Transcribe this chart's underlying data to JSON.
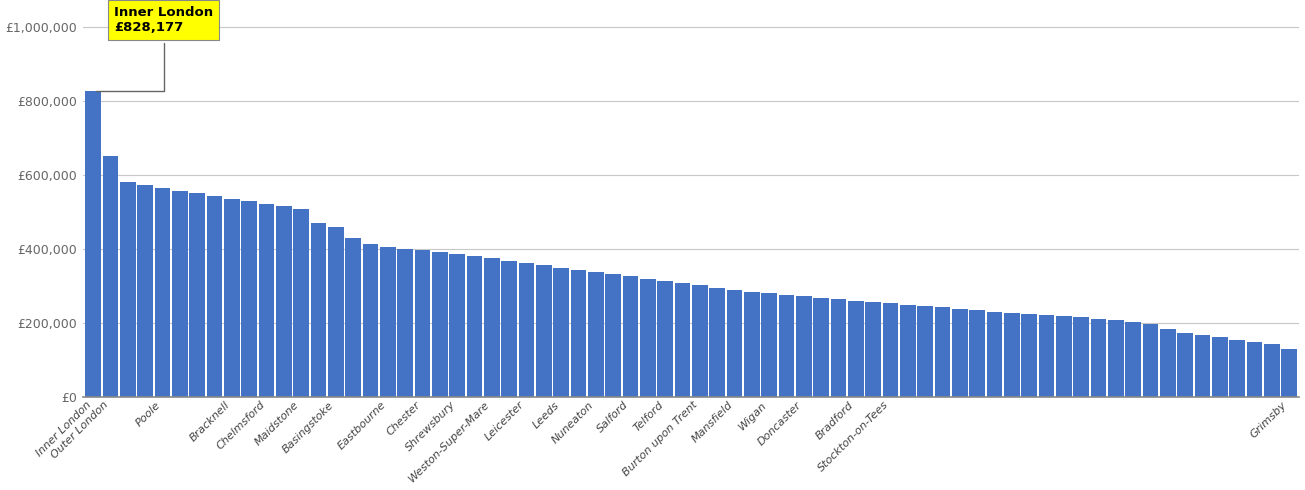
{
  "x_labels": [
    "Inner London",
    "Outer London",
    "Poole",
    "Bracknell",
    "Chelmsford",
    "Maidstone",
    "Basingstoke",
    "Eastbourne",
    "Chester",
    "Shrewsbury",
    "Weston-Super-Mare",
    "Leicester",
    "Leeds",
    "Nuneaton",
    "Salford",
    "Telford",
    "Burton upon Trent",
    "Mansfield",
    "Wigan",
    "Doncaster",
    "Bradford",
    "Stockton-on-Tees",
    "Grimsby"
  ],
  "bar_color": "#4472c4",
  "background_color": "#ffffff",
  "annotation_line1": "Inner London",
  "annotation_line2": "£828,177",
  "annotation_bg": "#ffff00",
  "ylim": [
    0,
    1050000
  ],
  "yticks": [
    0,
    200000,
    400000,
    600000,
    800000,
    1000000
  ],
  "ytick_labels": [
    "£0",
    "£200,000",
    "£400,000",
    "£600,000",
    "£800,000",
    "£1,000,000"
  ],
  "grid_color": "#c8c8c8",
  "bar_values": [
    828177,
    652000,
    582000,
    573000,
    565000,
    558000,
    551000,
    544000,
    537000,
    530000,
    523000,
    516000,
    509000,
    470000,
    460000,
    430000,
    415000,
    405000,
    400000,
    398000,
    392000,
    387000,
    382000,
    375000,
    368000,
    362000,
    356000,
    350000,
    344000,
    338000,
    332000,
    326000,
    320000,
    314000,
    308000,
    302000,
    296000,
    290000,
    285000,
    280000,
    276000,
    272000,
    268000,
    264000,
    260000,
    257000,
    253000,
    249000,
    245000,
    242000,
    238000,
    234000,
    231000,
    228000,
    224000,
    221000,
    218000,
    215000,
    212000,
    208000,
    202000,
    196000,
    183000,
    172000,
    168000,
    163000,
    155000,
    148000,
    143000,
    131000
  ]
}
